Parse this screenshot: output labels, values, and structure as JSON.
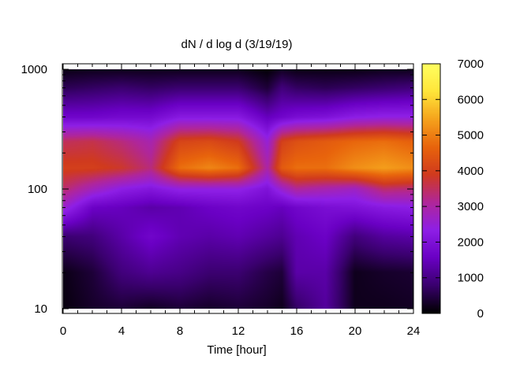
{
  "chart_data": {
    "type": "heatmap",
    "title": "dN / d log d (3/19/19)",
    "xlabel": "Time [hour]",
    "ylabel": "",
    "xlim": [
      0,
      24
    ],
    "ylim": [
      10,
      1000
    ],
    "y_scale": "log",
    "x_ticks": [
      "0",
      "4",
      "8",
      "12",
      "16",
      "20",
      "24"
    ],
    "y_ticks": [
      "10",
      "100",
      "1000"
    ],
    "colorbar": {
      "range": [
        0,
        7000
      ],
      "ticks": [
        "0",
        "1000",
        "2000",
        "3000",
        "4000",
        "5000",
        "6000",
        "7000"
      ],
      "palette": [
        "#000000",
        "#3a006e",
        "#6a00c4",
        "#8e1fe6",
        "#b0269a",
        "#d03a1e",
        "#e8640c",
        "#f5a21c",
        "#ffe53a",
        "#ffff60"
      ]
    },
    "x": [
      0,
      2,
      4,
      6,
      8,
      10,
      12,
      14,
      15,
      16,
      18,
      20,
      22,
      24
    ],
    "y": [
      10,
      20,
      40,
      70,
      100,
      150,
      250,
      400,
      700,
      1000
    ],
    "z": [
      [
        100,
        300,
        400,
        250,
        400,
        300,
        400,
        300,
        200,
        700,
        1200,
        200,
        200,
        250
      ],
      [
        150,
        400,
        900,
        1100,
        1000,
        800,
        800,
        500,
        400,
        1300,
        1300,
        200,
        300,
        350
      ],
      [
        800,
        900,
        1300,
        1700,
        1400,
        1300,
        1400,
        1200,
        1100,
        1400,
        1600,
        900,
        1200,
        1300
      ],
      [
        2600,
        1600,
        1500,
        1300,
        1400,
        1600,
        1700,
        1600,
        1500,
        1700,
        1900,
        2000,
        2200,
        2300
      ],
      [
        3400,
        2800,
        2300,
        2100,
        2400,
        2400,
        2400,
        2000,
        2600,
        3100,
        2900,
        2700,
        3400,
        3300
      ],
      [
        4000,
        4000,
        3800,
        3300,
        4800,
        5100,
        4800,
        3000,
        4500,
        4800,
        4800,
        5200,
        5400,
        5200
      ],
      [
        3500,
        3600,
        3300,
        2900,
        4100,
        4200,
        3900,
        2500,
        4000,
        4300,
        4500,
        4700,
        4800,
        4600
      ],
      [
        1700,
        1700,
        1800,
        1800,
        2200,
        2200,
        2200,
        1500,
        1700,
        1900,
        2000,
        2300,
        2400,
        2400
      ],
      [
        600,
        700,
        800,
        700,
        800,
        800,
        800,
        400,
        900,
        700,
        600,
        700,
        800,
        900
      ],
      [
        150,
        200,
        200,
        200,
        200,
        200,
        200,
        50,
        250,
        150,
        150,
        150,
        200,
        200
      ]
    ]
  }
}
